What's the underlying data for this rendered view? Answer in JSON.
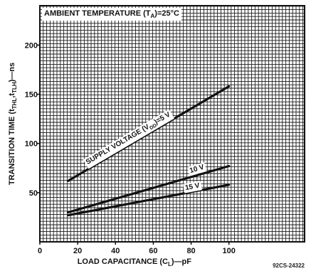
{
  "chart_data": {
    "type": "line",
    "title": "AMBIENT TEMPERATURE (T",
    "title_sub": "A",
    "title_tail": ")=25°C",
    "xlabel": "LOAD CAPACITANCE (C",
    "xlabel_sub": "L",
    "xlabel_tail": ")—pF",
    "ylabel": "TRANSITION TIME (t",
    "ylabel_sub1": "THL",
    "ylabel_mid": ",t",
    "ylabel_sub2": "TLH",
    "ylabel_tail": ")—ns",
    "xlim": [
      0,
      140
    ],
    "ylim": [
      0,
      240
    ],
    "x_ticks": [
      0,
      20,
      40,
      60,
      80,
      100
    ],
    "y_ticks": [
      50,
      100,
      150,
      200
    ],
    "grid": true,
    "series": [
      {
        "name": "SUPPLY VOLTAGE (V",
        "name_sub": "DD",
        "name_tail": ")=5 V",
        "x": [
          15,
          100
        ],
        "y": [
          62,
          158
        ]
      },
      {
        "name": "10 V",
        "x": [
          15,
          100
        ],
        "y": [
          30,
          77
        ]
      },
      {
        "name": "15 V",
        "x": [
          15,
          100
        ],
        "y": [
          27,
          58
        ]
      }
    ],
    "figure_code": "92CS-24322",
    "colors": {
      "ink": "#111111",
      "grid": "#1a1a1a",
      "background": "#ffffff"
    }
  }
}
